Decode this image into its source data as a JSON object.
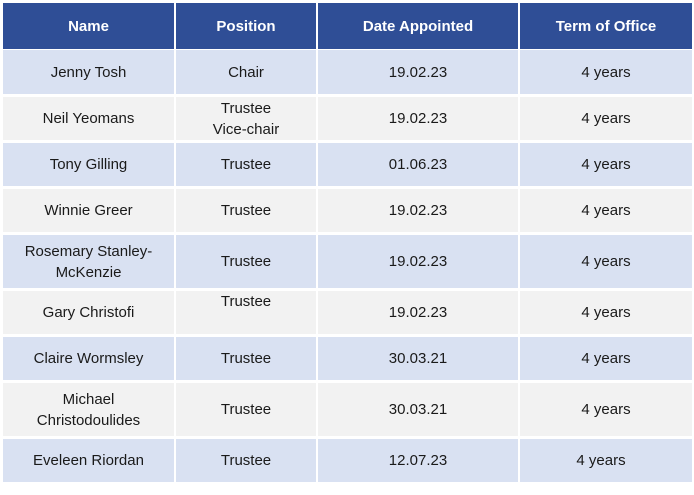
{
  "table": {
    "headers": [
      "Name",
      "Position",
      "Date Appointed",
      "Term of Office"
    ],
    "rows": [
      {
        "name": [
          "Jenny Tosh"
        ],
        "position": [
          "Chair"
        ],
        "date": "19.02.23",
        "term": "4 years"
      },
      {
        "name": [
          "Neil Yeomans"
        ],
        "position": [
          "Trustee",
          "Vice-chair"
        ],
        "date": "19.02.23",
        "term": "4 years"
      },
      {
        "name": [
          "Tony Gilling"
        ],
        "position": [
          "Trustee"
        ],
        "date": "01.06.23",
        "term": "4 years"
      },
      {
        "name": [
          "Winnie Greer"
        ],
        "position": [
          "Trustee"
        ],
        "date": "19.02.23",
        "term": "4 years"
      },
      {
        "name": [
          "Rosemary Stanley-",
          "McKenzie"
        ],
        "position": [
          "Trustee"
        ],
        "date": "19.02.23",
        "term": "4 years"
      },
      {
        "name": [
          "Gary Christofi"
        ],
        "position": [
          "Trustee"
        ],
        "date": "19.02.23",
        "term": "4 years"
      },
      {
        "name": [
          "Claire Wormsley"
        ],
        "position": [
          "Trustee"
        ],
        "date": "30.03.21",
        "term": "4 years"
      },
      {
        "name": [
          "Michael",
          "Christodoulides"
        ],
        "position": [
          "Trustee"
        ],
        "date": "30.03.21",
        "term": "4 years"
      },
      {
        "name": [
          "Eveleen Riordan"
        ],
        "position": [
          "Trustee"
        ],
        "date": "12.07.23",
        "term": "4 years"
      }
    ]
  },
  "colors": {
    "header_bg": "#2f4e96",
    "row_odd_bg": "#d9e1f2",
    "row_even_bg": "#f2f2f2"
  }
}
